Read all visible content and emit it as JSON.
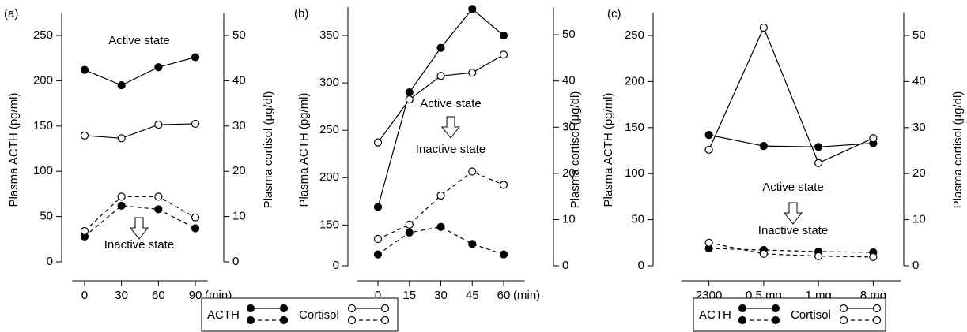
{
  "chart_data": [
    {
      "type": "line",
      "label": "(a)",
      "y_label": "Plasma ACTH (pg/ml)",
      "y2_label": "Plasma cortisol (μg/dl)",
      "x": [
        0,
        30,
        60,
        90
      ],
      "xticks": [
        0,
        30,
        60,
        90
      ],
      "xlim": [
        -10,
        100
      ],
      "x_unit": "(min)",
      "ylim": [
        0,
        275
      ],
      "yticks": [
        0,
        50,
        100,
        150,
        200,
        250
      ],
      "y2lim": [
        0,
        55
      ],
      "y2ticks": [
        0,
        10,
        20,
        30,
        40,
        50
      ],
      "annotations": [
        "Active state",
        "Inactive state"
      ],
      "series": [
        {
          "color": "#000000",
          "marker": "filled",
          "dash": false,
          "axis": "y",
          "values": [
            212,
            195,
            215,
            226
          ]
        },
        {
          "color": "#000000",
          "marker": "filled",
          "dash": true,
          "axis": "y",
          "values": [
            28,
            62,
            58,
            37
          ]
        },
        {
          "color": "#000000",
          "marker": "open",
          "dash": false,
          "axis": "y2",
          "values": [
            27.9,
            27.3,
            30.3,
            30.5
          ]
        },
        {
          "color": "#000000",
          "marker": "open",
          "dash": true,
          "axis": "y2",
          "values": [
            6.8,
            14.4,
            14.4,
            9.8
          ]
        }
      ]
    },
    {
      "type": "line",
      "label": "(b)",
      "y_label": "Plasma ACTH (pg/ml)",
      "y2_label": "Plasma cortisol (μg/dl)",
      "x": [
        0,
        15,
        30,
        45,
        60
      ],
      "xticks": [
        0,
        15,
        30,
        45,
        60
      ],
      "xlim": [
        -10,
        70
      ],
      "x_unit": "(min)",
      "ylim": [
        0,
        380
      ],
      "ybreak": [
        0,
        107
      ],
      "yticks": [
        0,
        150,
        200,
        250,
        300,
        350
      ],
      "y2lim": [
        0,
        56
      ],
      "y2ticks": [
        0,
        10,
        20,
        30,
        40,
        50
      ],
      "annotations": [
        "Active state",
        "Inactive state"
      ],
      "legend": [
        "ACTH",
        "Cortisol"
      ],
      "series": [
        {
          "color": "#000000",
          "marker": "filled",
          "dash": false,
          "axis": "y",
          "values": [
            169,
            290,
            337,
            378,
            350
          ]
        },
        {
          "color": "#000000",
          "marker": "filled",
          "dash": true,
          "axis": "y",
          "values": [
            119,
            142,
            148,
            130,
            119
          ]
        },
        {
          "color": "#000000",
          "marker": "open",
          "dash": false,
          "axis": "y2",
          "values": [
            26.7,
            36,
            41.1,
            41.8,
            45.7
          ]
        },
        {
          "color": "#000000",
          "marker": "open",
          "dash": true,
          "axis": "y2",
          "values": [
            5.8,
            8.9,
            15.2,
            20.4,
            17.5
          ]
        }
      ]
    },
    {
      "type": "line",
      "label": "(c)",
      "y_label": "Plasma ACTH (pg/ml)",
      "y2_label": "Plasma cortisol (μg/dl)",
      "categories": [
        "2300",
        "0.5 mg",
        "1 mg",
        "8 mg"
      ],
      "ylim": [
        0,
        275
      ],
      "yticks": [
        0,
        50,
        100,
        150,
        200,
        250
      ],
      "y2lim": [
        0,
        55
      ],
      "y2ticks": [
        0,
        10,
        20,
        30,
        40,
        50
      ],
      "annotations": [
        "Active state",
        "Inactive state"
      ],
      "legend": [
        "ACTH",
        "Cortisol"
      ],
      "series": [
        {
          "color": "#000000",
          "marker": "filled",
          "dash": false,
          "axis": "y",
          "values": [
            142,
            130,
            129,
            133
          ]
        },
        {
          "color": "#000000",
          "marker": "filled",
          "dash": true,
          "axis": "y",
          "values": [
            18.8,
            17.1,
            15.4,
            14.6
          ]
        },
        {
          "color": "#000000",
          "marker": "open",
          "dash": false,
          "axis": "y2",
          "values": [
            25.2,
            51.7,
            22.3,
            27.7
          ]
        },
        {
          "color": "#000000",
          "marker": "open",
          "dash": true,
          "axis": "y2",
          "values": [
            5.0,
            2.6,
            2.1,
            1.9
          ]
        }
      ]
    }
  ]
}
